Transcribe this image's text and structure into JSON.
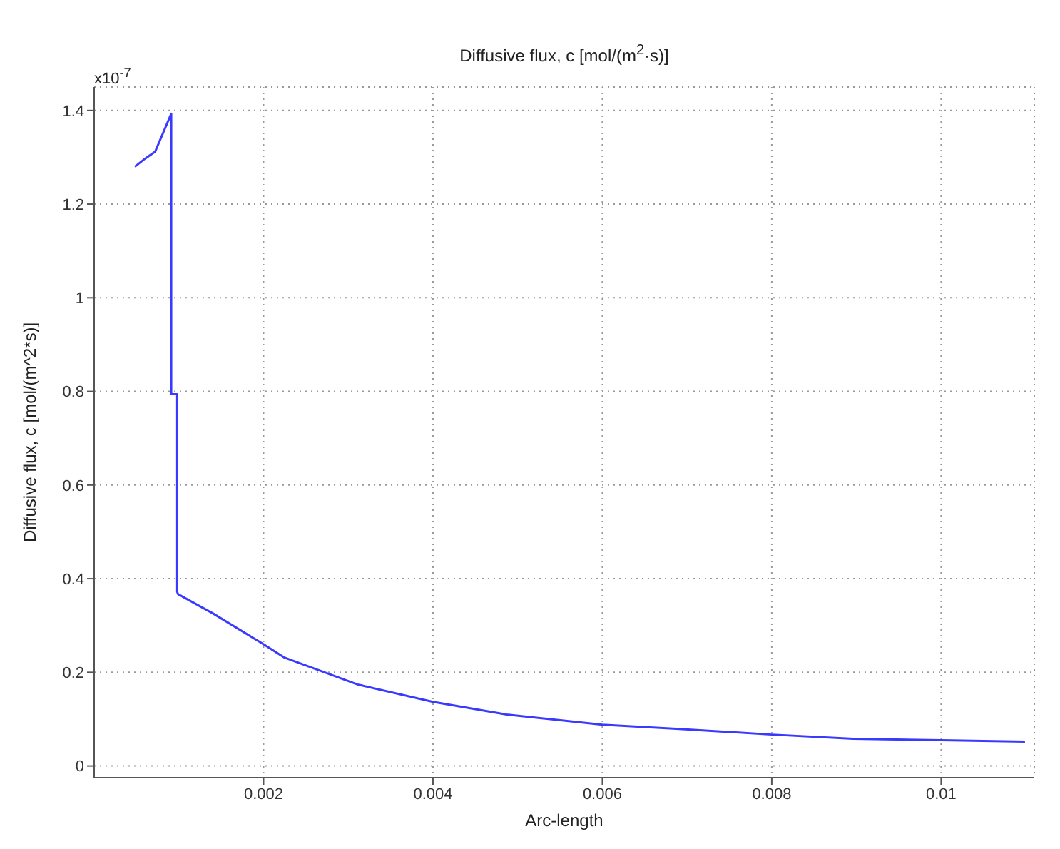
{
  "chart_data": {
    "type": "line",
    "title": "Diffusive flux, c [mol/(m$^{2}$·s)]",
    "xlabel": "Arc-length",
    "ylabel": "Diffusive flux, c [mol/(m^2*s)]",
    "annotations": [
      "x10$^{-7}$"
    ],
    "x": [
      0.00048,
      0.0006,
      0.00072,
      0.00091,
      0.00091,
      0.00098,
      0.00098,
      0.00099,
      0.0014,
      0.002,
      0.00224,
      0.00311,
      0.004,
      0.00487,
      0.006,
      0.00691,
      0.008,
      0.00896,
      0.01,
      0.01099
    ],
    "series": [
      {
        "color": "#3a3aff",
        "values": [
          1.28,
          1.297,
          1.312,
          1.393,
          0.794,
          0.794,
          0.372,
          0.367,
          0.326,
          0.26,
          0.232,
          0.174,
          0.137,
          0.11,
          0.088,
          0.079,
          0.067,
          0.058,
          0.055,
          0.052
        ]
      }
    ],
    "xlim": [
      0,
      0.0111
    ],
    "xticks": [
      0.002,
      0.004,
      0.006,
      0.008,
      0.01
    ],
    "ylim": [
      -0.025,
      1.45
    ],
    "yticks": [
      0,
      0.2,
      0.4,
      0.6,
      0.8,
      1,
      1.2,
      1.4
    ],
    "grid": true,
    "marker": "none",
    "line_style": "solid"
  }
}
